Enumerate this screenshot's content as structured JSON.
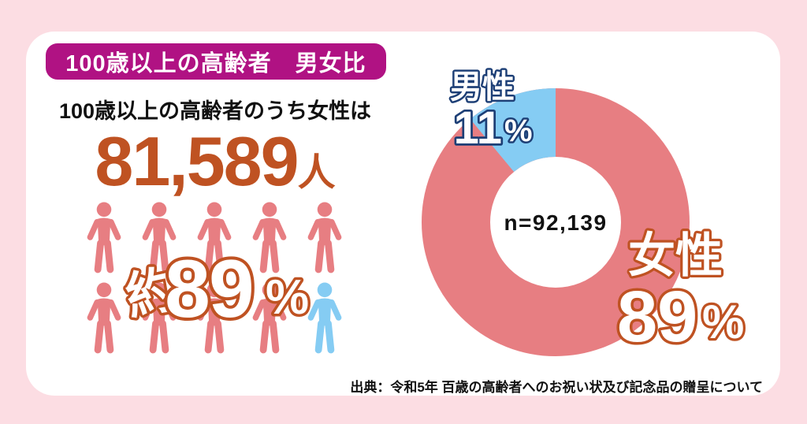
{
  "page": {
    "background_color": "#fcdde3",
    "card_color": "#ffffff"
  },
  "header": {
    "badge_title": "100歳以上の高齢者　男女比",
    "badge_color": "#b01283"
  },
  "left_panel": {
    "subtitle": "100歳以上の高齢者のうち女性は",
    "count_value": "81,589",
    "count_unit": "人",
    "approx_prefix": "約",
    "approx_value": "89",
    "approx_unit": "%",
    "accent_color": "#bf5222",
    "pictogram": {
      "female_color": "#e77e82",
      "male_color": "#85ccf3",
      "units": [
        "female",
        "female",
        "female",
        "female",
        "female",
        "female",
        "female",
        "female",
        "female",
        "male"
      ]
    }
  },
  "donut": {
    "center_label": "n=92,139",
    "male": {
      "label": "男性",
      "value": "11",
      "unit": "%",
      "color": "#85ccf3",
      "outline_color": "#1d3f76"
    },
    "female": {
      "label": "女性",
      "value": "89",
      "unit": "%",
      "color": "#e77e82",
      "outline_color": "#bf5222"
    }
  },
  "chart_data": {
    "type": "pie",
    "title": "100歳以上の高齢者 男女比",
    "labels": [
      "女性",
      "男性"
    ],
    "values": [
      89,
      11
    ],
    "colors": [
      "#e77e82",
      "#85ccf3"
    ],
    "center_label": "n=92,139",
    "donut_hole": true,
    "legend_position": "on-slice",
    "annotations": [
      "100歳以上の高齢者のうち女性は 81,589人",
      "約89%",
      "n=92,139"
    ]
  },
  "source": {
    "text": "出典：令和5年 百歳の高齢者へのお祝い状及び記念品の贈呈について"
  }
}
